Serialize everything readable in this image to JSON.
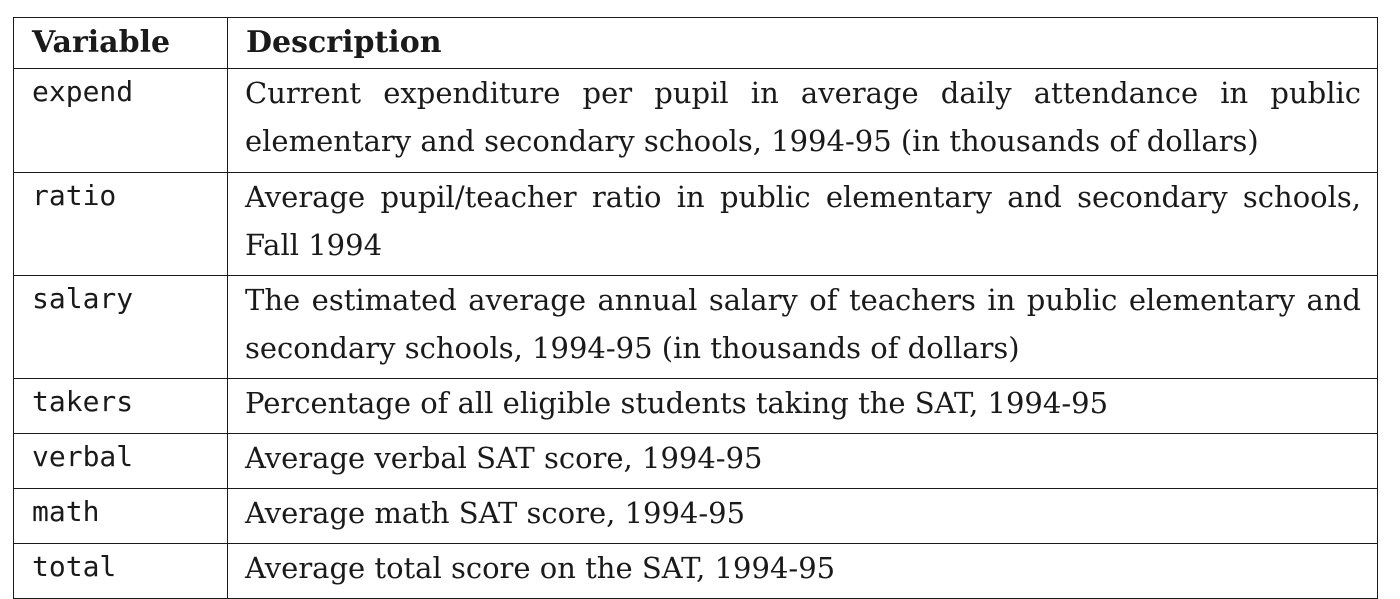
{
  "table": {
    "headers": [
      "Variable",
      "Description"
    ],
    "rows": [
      {
        "variable": "expend",
        "description": "Current expenditure per pupil in average daily attendance in public elementary and secondary schools, 1994-95 (in thousands of dollars)"
      },
      {
        "variable": "ratio",
        "description": "Average pupil/teacher ratio in public elementary and secondary schools, Fall 1994"
      },
      {
        "variable": "salary",
        "description": "The estimated average annual salary of teachers in public elementary and secondary schools, 1994-95 (in thousands of dollars)"
      },
      {
        "variable": "takers",
        "description": "Percentage of all eligible students taking the SAT, 1994-95"
      },
      {
        "variable": "verbal",
        "description": "Average verbal SAT score, 1994-95"
      },
      {
        "variable": "math",
        "description": "Average math SAT score, 1994-95"
      },
      {
        "variable": "total",
        "description": "Average total score on the SAT, 1994-95"
      }
    ]
  }
}
